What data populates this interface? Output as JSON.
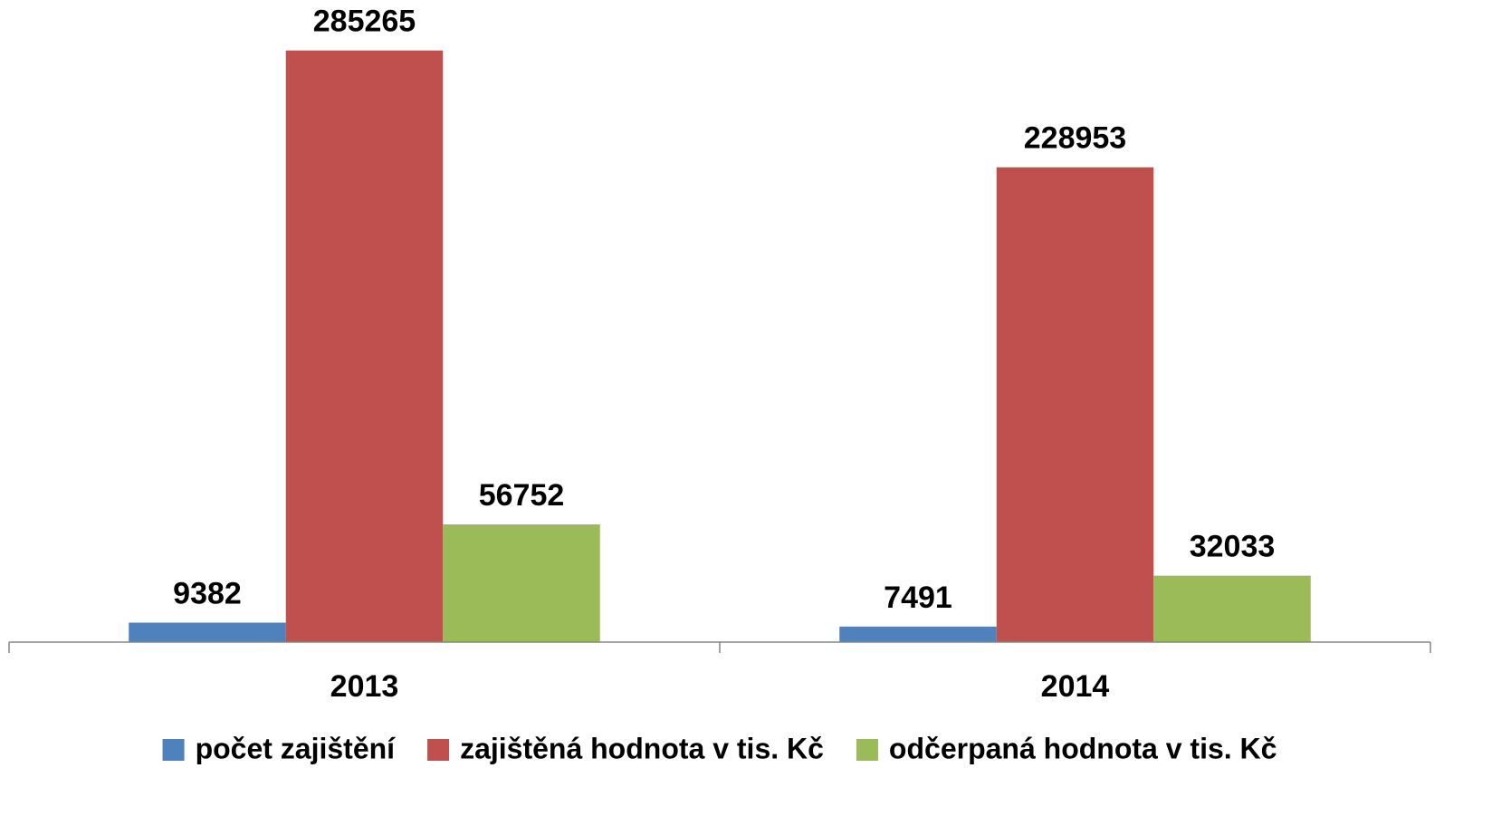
{
  "chart_data": {
    "type": "bar",
    "categories": [
      "2013",
      "2014"
    ],
    "series": [
      {
        "name": "počet zajištění",
        "color": "#4f81bd",
        "values": [
          9382,
          7491
        ]
      },
      {
        "name": "zajištěná hodnota v tis. Kč",
        "color": "#c0504d",
        "values": [
          285265,
          228953
        ]
      },
      {
        "name": "odčerpaná hodnota v tis. Kč",
        "color": "#9bbb59",
        "values": [
          56752,
          32033
        ]
      }
    ],
    "ylim": [
      0,
      300000
    ],
    "legend": "bottom"
  }
}
